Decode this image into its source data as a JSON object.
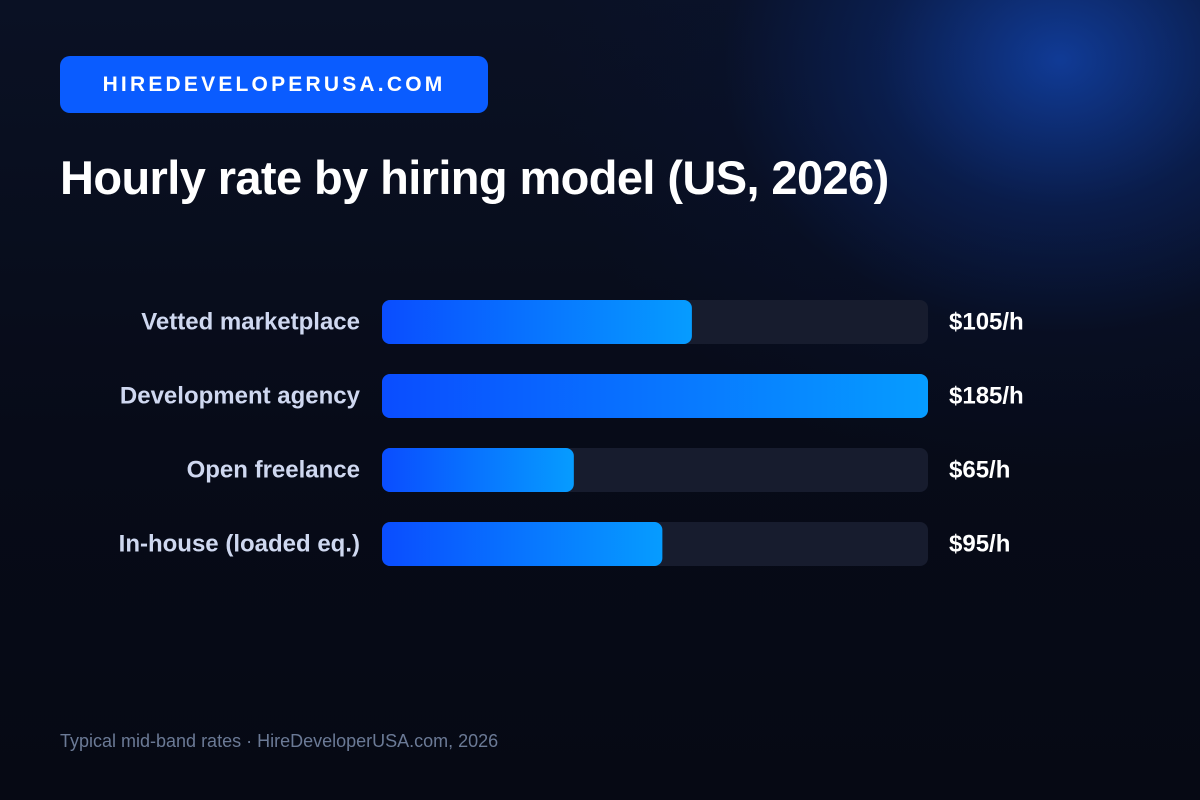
{
  "brand": {
    "label": "HIREDEVELOPERUSA.COM"
  },
  "title": "Hourly rate by hiring model (US, 2026)",
  "footer": "Typical mid-band rates · HireDeveloperUSA.com, 2026",
  "colors": {
    "background": "#070b18",
    "brand_badge": "#0a5cff",
    "bar_start": "#0a4dff",
    "bar_end": "#069cff",
    "track": "#171c2e",
    "category_label": "#cfd8f0",
    "value_label": "#ffffff"
  },
  "chart_data": {
    "type": "bar",
    "orientation": "horizontal",
    "categories": [
      "Vetted marketplace",
      "Development agency",
      "Open freelance",
      "In-house (loaded eq.)"
    ],
    "values": [
      105,
      185,
      65,
      95
    ],
    "value_labels": [
      "$105/h",
      "$185/h",
      "$65/h",
      "$95/h"
    ],
    "xlim": [
      0,
      185
    ],
    "title": "Hourly rate by hiring model (US, 2026)",
    "xlabel": "",
    "ylabel": "",
    "grid": false,
    "legend": "none"
  }
}
